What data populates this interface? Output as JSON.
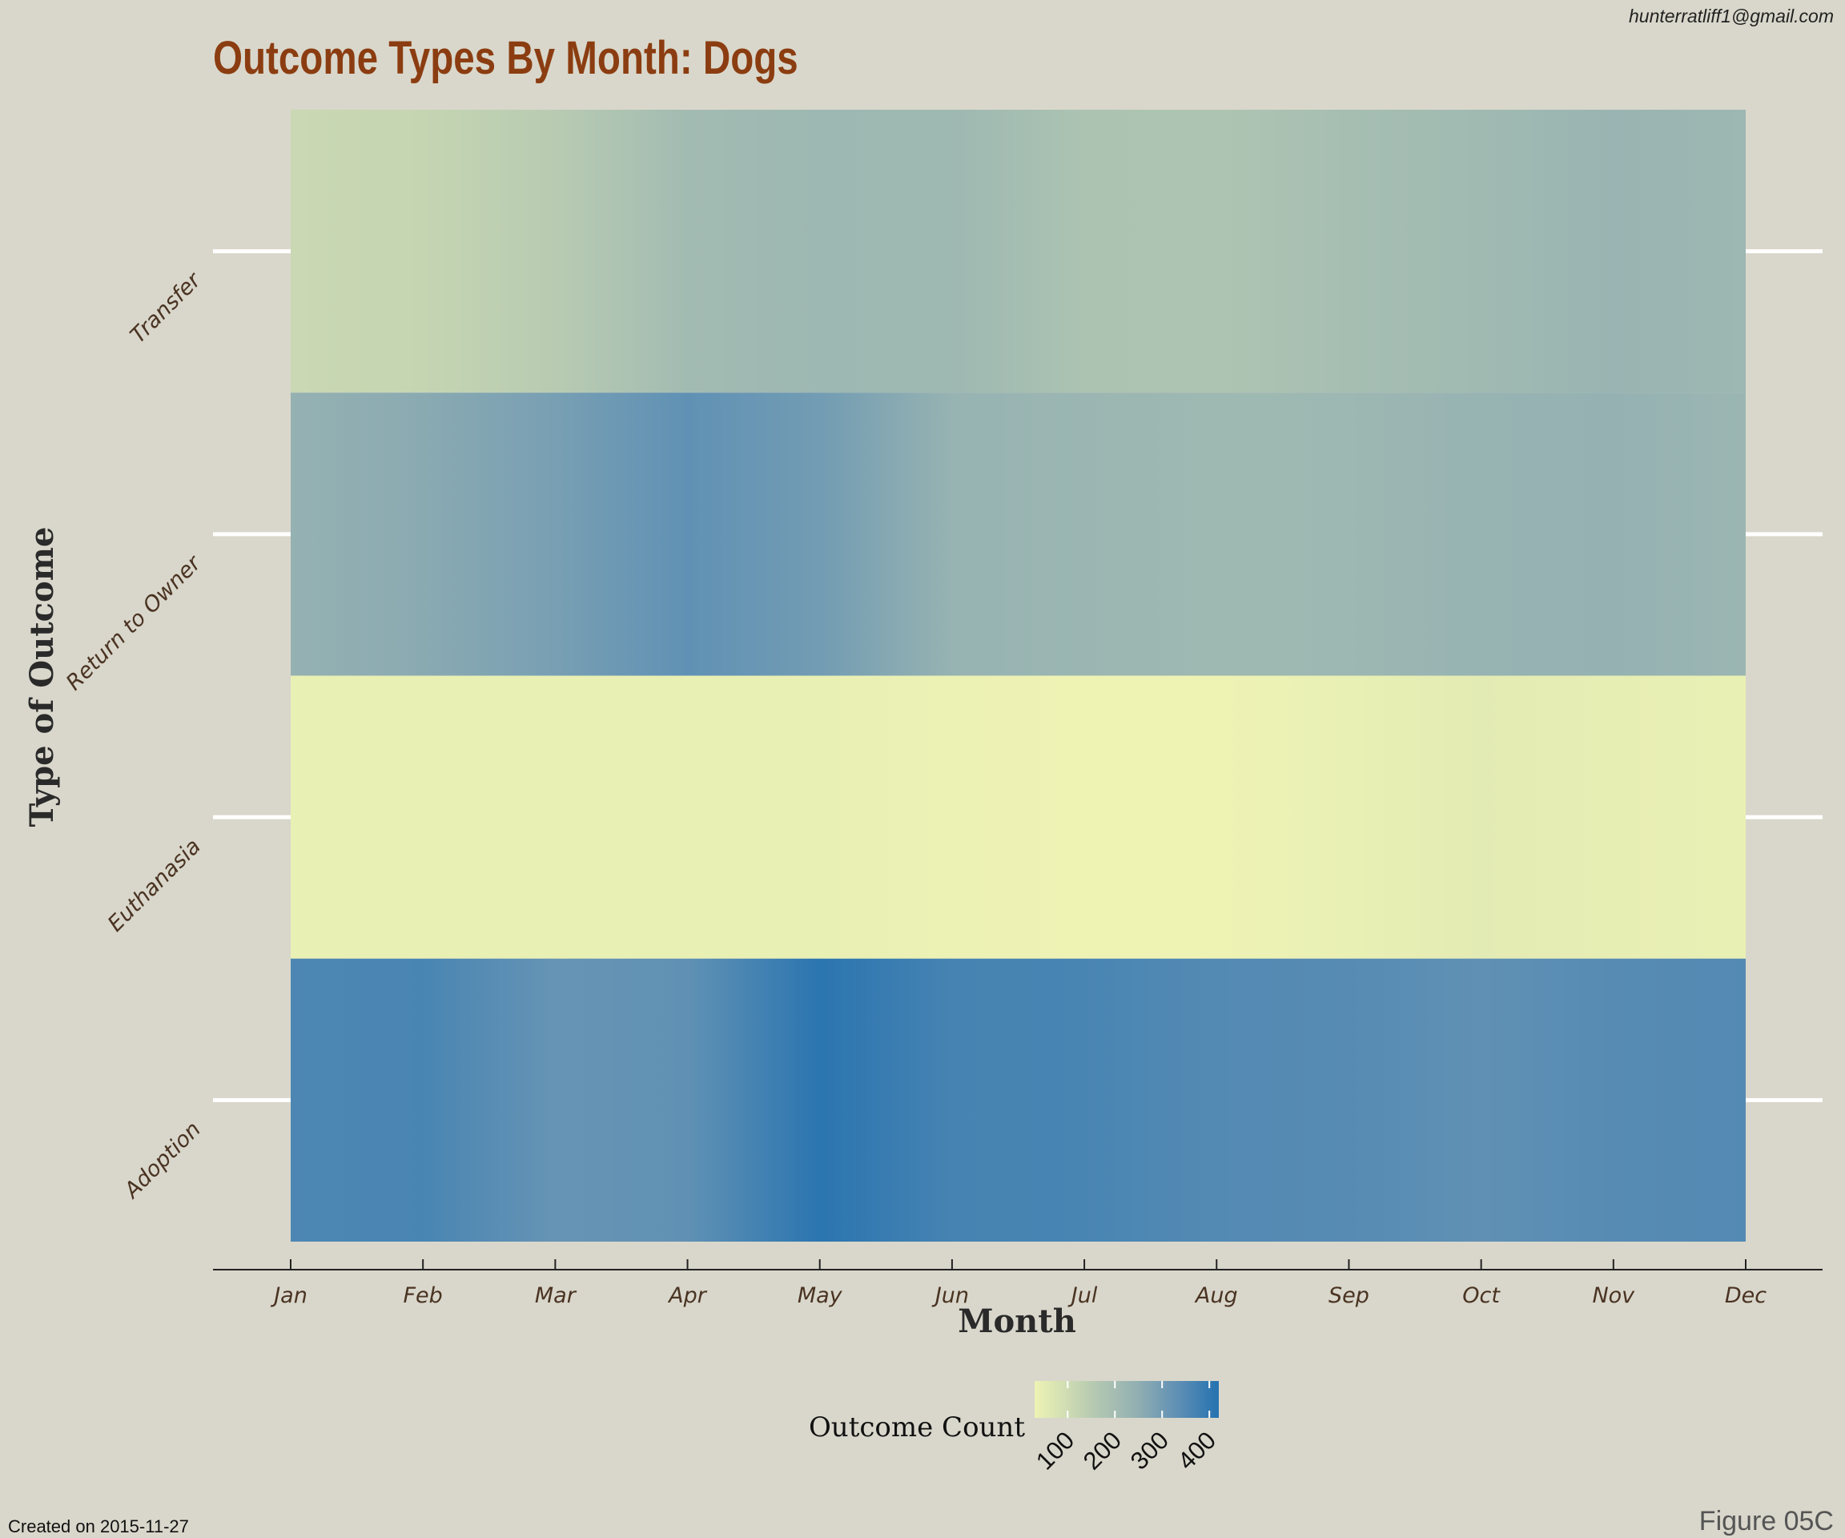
{
  "chart_data": {
    "type": "heatmap",
    "title": "Outcome Types By Month: Dogs",
    "xlabel": "Month",
    "ylabel": "Type of Outcome",
    "x_categories": [
      "Jan",
      "Feb",
      "Mar",
      "Apr",
      "May",
      "Jun",
      "Jul",
      "Aug",
      "Sep",
      "Oct",
      "Nov",
      "Dec"
    ],
    "y_categories": [
      "Transfer",
      "Return to Owner",
      "Euthanasia",
      "Adoption"
    ],
    "values": [
      [
        110,
        120,
        150,
        205,
        220,
        215,
        180,
        175,
        195,
        210,
        230,
        220
      ],
      [
        240,
        260,
        290,
        330,
        300,
        235,
        225,
        215,
        220,
        235,
        240,
        225
      ],
      [
        40,
        40,
        40,
        40,
        40,
        35,
        30,
        28,
        40,
        55,
        45,
        40
      ],
      [
        360,
        365,
        320,
        330,
        410,
        370,
        365,
        350,
        345,
        330,
        345,
        350
      ]
    ],
    "interpolation": "smooth",
    "legend": {
      "title": "Outcome Count",
      "ticks": [
        100,
        200,
        300,
        400
      ],
      "range": [
        30,
        420
      ],
      "position": "bottom-center",
      "color_low": "#eef3b4",
      "color_high": "#2472b0"
    }
  },
  "header": {
    "author_email": "hunterratliff1@gmail.com"
  },
  "footer": {
    "created": "Created on 2015-11-27",
    "figure_label": "Figure 05C"
  }
}
